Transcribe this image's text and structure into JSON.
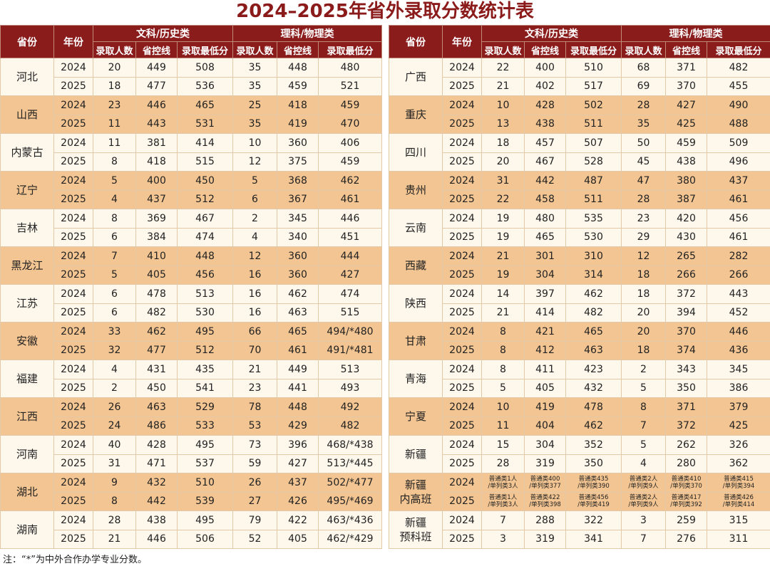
{
  "title": "2024–2025年省外录取分数统计表",
  "header": {
    "province": "省份",
    "year": "年份",
    "groups": [
      "文科/历史类",
      "理科/物理类"
    ],
    "columns": [
      "录取人数",
      "省控线",
      "录取最低分"
    ]
  },
  "tables": [
    {
      "provinces": [
        {
          "name": [
            "河北"
          ],
          "rows": [
            [
              2024,
              20,
              449,
              508,
              35,
              448,
              480
            ],
            [
              2025,
              18,
              477,
              536,
              35,
              459,
              521
            ]
          ]
        },
        {
          "name": [
            "山西"
          ],
          "rows": [
            [
              2024,
              23,
              446,
              465,
              25,
              418,
              459
            ],
            [
              2025,
              11,
              443,
              531,
              35,
              419,
              470
            ]
          ]
        },
        {
          "name": [
            "内蒙古"
          ],
          "rows": [
            [
              2024,
              11,
              381,
              414,
              10,
              360,
              406
            ],
            [
              2025,
              8,
              418,
              515,
              12,
              375,
              459
            ]
          ]
        },
        {
          "name": [
            "辽宁"
          ],
          "rows": [
            [
              2024,
              5,
              400,
              450,
              5,
              368,
              462
            ],
            [
              2025,
              4,
              437,
              512,
              6,
              367,
              461
            ]
          ]
        },
        {
          "name": [
            "吉林"
          ],
          "rows": [
            [
              2024,
              8,
              369,
              467,
              2,
              345,
              446
            ],
            [
              2025,
              6,
              384,
              474,
              4,
              340,
              451
            ]
          ]
        },
        {
          "name": [
            "黑龙江"
          ],
          "rows": [
            [
              2024,
              7,
              410,
              448,
              12,
              360,
              444
            ],
            [
              2025,
              5,
              405,
              456,
              16,
              360,
              427
            ]
          ]
        },
        {
          "name": [
            "江苏"
          ],
          "rows": [
            [
              2024,
              6,
              478,
              513,
              16,
              462,
              474
            ],
            [
              2025,
              6,
              482,
              530,
              16,
              463,
              515
            ]
          ]
        },
        {
          "name": [
            "安徽"
          ],
          "rows": [
            [
              2024,
              33,
              462,
              495,
              66,
              465,
              "494/*480"
            ],
            [
              2025,
              32,
              477,
              512,
              70,
              461,
              "491/*481"
            ]
          ]
        },
        {
          "name": [
            "福建"
          ],
          "rows": [
            [
              2024,
              4,
              431,
              435,
              21,
              449,
              513
            ],
            [
              2025,
              2,
              450,
              541,
              23,
              441,
              493
            ]
          ]
        },
        {
          "name": [
            "江西"
          ],
          "rows": [
            [
              2024,
              26,
              463,
              529,
              78,
              448,
              492
            ],
            [
              2025,
              24,
              486,
              533,
              53,
              429,
              482
            ]
          ]
        },
        {
          "name": [
            "河南"
          ],
          "rows": [
            [
              2024,
              40,
              428,
              495,
              73,
              396,
              "468/*438"
            ],
            [
              2025,
              31,
              471,
              537,
              59,
              427,
              "513/*445"
            ]
          ]
        },
        {
          "name": [
            "湖北"
          ],
          "rows": [
            [
              2024,
              9,
              432,
              510,
              26,
              437,
              "502/*477"
            ],
            [
              2025,
              8,
              442,
              539,
              27,
              426,
              "495/*469"
            ]
          ]
        },
        {
          "name": [
            "湖南"
          ],
          "rows": [
            [
              2024,
              28,
              438,
              495,
              79,
              422,
              "463/*436"
            ],
            [
              2025,
              21,
              446,
              506,
              52,
              405,
              "462/*429"
            ]
          ]
        }
      ]
    },
    {
      "provinces": [
        {
          "name": [
            "广西"
          ],
          "rows": [
            [
              2024,
              22,
              400,
              510,
              68,
              371,
              482
            ],
            [
              2025,
              21,
              402,
              517,
              69,
              370,
              455
            ]
          ]
        },
        {
          "name": [
            "重庆"
          ],
          "rows": [
            [
              2024,
              10,
              428,
              502,
              28,
              427,
              490
            ],
            [
              2025,
              13,
              438,
              511,
              35,
              425,
              488
            ]
          ]
        },
        {
          "name": [
            "四川"
          ],
          "rows": [
            [
              2024,
              18,
              457,
              507,
              50,
              459,
              509
            ],
            [
              2025,
              20,
              467,
              528,
              45,
              438,
              496
            ]
          ]
        },
        {
          "name": [
            "贵州"
          ],
          "rows": [
            [
              2024,
              31,
              442,
              487,
              47,
              380,
              437
            ],
            [
              2025,
              22,
              458,
              511,
              28,
              387,
              461
            ]
          ]
        },
        {
          "name": [
            "云南"
          ],
          "rows": [
            [
              2024,
              19,
              480,
              535,
              23,
              420,
              456
            ],
            [
              2025,
              19,
              465,
              530,
              29,
              430,
              461
            ]
          ]
        },
        {
          "name": [
            "西藏"
          ],
          "rows": [
            [
              2024,
              21,
              301,
              310,
              12,
              265,
              282
            ],
            [
              2025,
              19,
              304,
              314,
              18,
              266,
              266
            ]
          ]
        },
        {
          "name": [
            "陕西"
          ],
          "rows": [
            [
              2024,
              14,
              397,
              462,
              18,
              372,
              443
            ],
            [
              2025,
              21,
              414,
              482,
              20,
              394,
              452
            ]
          ]
        },
        {
          "name": [
            "甘肃"
          ],
          "rows": [
            [
              2024,
              8,
              421,
              465,
              20,
              370,
              446
            ],
            [
              2025,
              8,
              412,
              463,
              18,
              374,
              436
            ]
          ]
        },
        {
          "name": [
            "青海"
          ],
          "rows": [
            [
              2024,
              8,
              411,
              423,
              2,
              343,
              345
            ],
            [
              2025,
              5,
              405,
              432,
              5,
              350,
              386
            ]
          ]
        },
        {
          "name": [
            "宁夏"
          ],
          "rows": [
            [
              2024,
              10,
              419,
              478,
              8,
              371,
              379
            ],
            [
              2025,
              11,
              404,
              462,
              7,
              372,
              425
            ]
          ]
        },
        {
          "name": [
            "新疆"
          ],
          "rows": [
            [
              2024,
              15,
              304,
              352,
              5,
              262,
              326
            ],
            [
              2025,
              28,
              319,
              350,
              4,
              280,
              362
            ]
          ]
        },
        {
          "name": [
            "新疆",
            "内高班"
          ],
          "rows": [
            [
              2024,
              [
                "普通类1人",
                "/单列类3人"
              ],
              [
                "普通类400",
                "/单列类377"
              ],
              [
                "普通类435",
                "/单列类390"
              ],
              [
                "普通类2人",
                "/单列类9人"
              ],
              [
                "普通类410",
                "/单列类370"
              ],
              [
                "普通类415",
                "/单列类394"
              ]
            ],
            [
              2025,
              [
                "普通类1人",
                "/单列类3人"
              ],
              [
                "普通类422",
                "/单列类398"
              ],
              [
                "普通类456",
                "/单列类419"
              ],
              [
                "普通类2人",
                "/单列类9人"
              ],
              [
                "普通类417",
                "/单列类392"
              ],
              [
                "普通类426",
                "/单列类414"
              ]
            ]
          ]
        },
        {
          "name": [
            "新疆",
            "预科班"
          ],
          "rows": [
            [
              2024,
              7,
              288,
              322,
              3,
              259,
              315
            ],
            [
              2025,
              3,
              319,
              341,
              7,
              276,
              311
            ]
          ]
        }
      ]
    }
  ],
  "note": "注：“*”为中外合作办学专业分数。"
}
